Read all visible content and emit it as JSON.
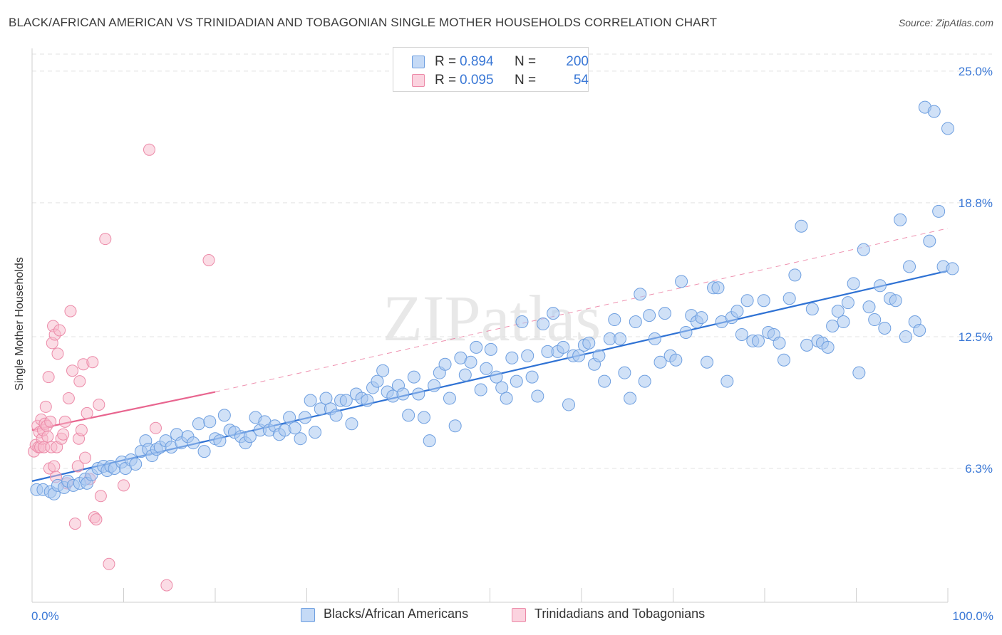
{
  "title": "BLACK/AFRICAN AMERICAN VS TRINIDADIAN AND TOBAGONIAN SINGLE MOTHER HOUSEHOLDS CORRELATION CHART",
  "source": "Source: ZipAtlas.com",
  "watermark": "ZIPatlas",
  "colors": {
    "blue_fill": "#a9c8f1",
    "blue_stroke": "#6e9fe0",
    "blue_line": "#2f72d4",
    "pink_fill": "#f7b9cc",
    "pink_stroke": "#ec8aa8",
    "pink_line": "#e8658f",
    "grid": "#e3e3e3",
    "tick_label": "#3a78d6"
  },
  "legend": {
    "rows": [
      {
        "r_label": "R =",
        "r_value": "0.894",
        "n_label": "N =",
        "n_value": "200"
      },
      {
        "r_label": "R =",
        "r_value": "0.095",
        "n_label": "N =",
        "n_value": "54"
      }
    ]
  },
  "bottom_legend": [
    "Blacks/African Americans",
    "Trinidadians and Tobagonians"
  ],
  "chart_data": {
    "type": "scatter",
    "title": "BLACK/AFRICAN AMERICAN VS TRINIDADIAN AND TOBAGONIAN SINGLE MOTHER HOUSEHOLDS CORRELATION CHART",
    "xlabel": "",
    "ylabel": "Single Mother Households",
    "xlim": [
      0,
      100
    ],
    "ylim": [
      0,
      25.8
    ],
    "x_tick_labels": [
      "0.0%",
      "100.0%"
    ],
    "y_ticks": [
      6.3,
      12.5,
      18.8,
      25.0
    ],
    "y_tick_labels": [
      "6.3%",
      "12.5%",
      "18.8%",
      "25.0%"
    ],
    "grid": "horizontal dashed",
    "legend_position": "top-center",
    "series": [
      {
        "name": "Blacks/African Americans",
        "color": "#a9c8f1",
        "trend": {
          "x": [
            0,
            100
          ],
          "y": [
            5.7,
            15.6
          ]
        },
        "points": [
          [
            0.5,
            5.3
          ],
          [
            1.2,
            5.3
          ],
          [
            2.0,
            5.2
          ],
          [
            2.4,
            5.1
          ],
          [
            2.8,
            5.5
          ],
          [
            3.5,
            5.4
          ],
          [
            3.9,
            5.7
          ],
          [
            4.5,
            5.5
          ],
          [
            5.2,
            5.6
          ],
          [
            5.8,
            5.8
          ],
          [
            6.0,
            5.6
          ],
          [
            6.5,
            6.0
          ],
          [
            7.2,
            6.3
          ],
          [
            7.8,
            6.4
          ],
          [
            8.2,
            6.2
          ],
          [
            8.6,
            6.4
          ],
          [
            9.0,
            6.3
          ],
          [
            9.8,
            6.6
          ],
          [
            10.2,
            6.3
          ],
          [
            10.8,
            6.7
          ],
          [
            11.3,
            6.5
          ],
          [
            11.9,
            7.1
          ],
          [
            12.4,
            7.6
          ],
          [
            12.7,
            7.2
          ],
          [
            13.1,
            6.9
          ],
          [
            13.6,
            7.2
          ],
          [
            14.0,
            7.3
          ],
          [
            14.6,
            7.6
          ],
          [
            15.2,
            7.3
          ],
          [
            15.8,
            7.9
          ],
          [
            16.3,
            7.5
          ],
          [
            17.0,
            7.8
          ],
          [
            17.6,
            7.5
          ],
          [
            18.2,
            8.4
          ],
          [
            18.8,
            7.1
          ],
          [
            19.4,
            8.5
          ],
          [
            20.0,
            7.7
          ],
          [
            20.5,
            7.6
          ],
          [
            21.0,
            8.8
          ],
          [
            21.6,
            8.1
          ],
          [
            22.1,
            8.0
          ],
          [
            22.8,
            7.8
          ],
          [
            23.3,
            7.5
          ],
          [
            23.8,
            7.8
          ],
          [
            24.4,
            8.7
          ],
          [
            24.9,
            8.1
          ],
          [
            25.4,
            8.5
          ],
          [
            25.9,
            8.1
          ],
          [
            26.5,
            8.3
          ],
          [
            27.0,
            7.9
          ],
          [
            27.6,
            8.1
          ],
          [
            28.1,
            8.7
          ],
          [
            28.7,
            8.2
          ],
          [
            29.3,
            7.7
          ],
          [
            29.8,
            8.7
          ],
          [
            30.4,
            9.5
          ],
          [
            30.9,
            8.0
          ],
          [
            31.5,
            9.1
          ],
          [
            32.1,
            9.6
          ],
          [
            32.6,
            9.1
          ],
          [
            33.2,
            8.8
          ],
          [
            33.7,
            9.5
          ],
          [
            34.3,
            9.5
          ],
          [
            34.9,
            8.4
          ],
          [
            35.4,
            9.8
          ],
          [
            36.0,
            9.6
          ],
          [
            36.6,
            9.5
          ],
          [
            37.2,
            10.1
          ],
          [
            37.7,
            10.4
          ],
          [
            38.3,
            10.9
          ],
          [
            38.8,
            9.9
          ],
          [
            39.4,
            9.7
          ],
          [
            40.0,
            10.2
          ],
          [
            40.5,
            9.8
          ],
          [
            41.1,
            8.8
          ],
          [
            41.7,
            10.6
          ],
          [
            42.2,
            9.8
          ],
          [
            42.8,
            8.7
          ],
          [
            43.4,
            7.6
          ],
          [
            43.9,
            10.2
          ],
          [
            44.5,
            10.8
          ],
          [
            45.1,
            11.2
          ],
          [
            45.6,
            9.6
          ],
          [
            46.2,
            8.3
          ],
          [
            46.8,
            11.5
          ],
          [
            47.3,
            10.7
          ],
          [
            47.9,
            11.3
          ],
          [
            48.5,
            12.0
          ],
          [
            49.0,
            10.0
          ],
          [
            49.6,
            11.0
          ],
          [
            50.1,
            11.9
          ],
          [
            50.7,
            10.6
          ],
          [
            51.3,
            10.1
          ],
          [
            51.8,
            9.6
          ],
          [
            52.4,
            11.5
          ],
          [
            52.9,
            10.4
          ],
          [
            53.5,
            13.2
          ],
          [
            54.1,
            11.6
          ],
          [
            54.6,
            10.6
          ],
          [
            55.2,
            9.7
          ],
          [
            55.8,
            13.1
          ],
          [
            56.3,
            11.8
          ],
          [
            56.9,
            13.6
          ],
          [
            57.4,
            11.8
          ],
          [
            58.0,
            12.0
          ],
          [
            58.6,
            9.3
          ],
          [
            59.1,
            11.6
          ],
          [
            59.7,
            11.6
          ],
          [
            60.3,
            12.1
          ],
          [
            60.8,
            12.2
          ],
          [
            61.4,
            11.2
          ],
          [
            61.9,
            11.6
          ],
          [
            62.5,
            10.4
          ],
          [
            63.1,
            12.4
          ],
          [
            63.6,
            13.3
          ],
          [
            64.2,
            12.4
          ],
          [
            64.7,
            10.8
          ],
          [
            65.3,
            9.6
          ],
          [
            65.9,
            13.2
          ],
          [
            66.4,
            14.5
          ],
          [
            66.9,
            10.4
          ],
          [
            67.4,
            13.5
          ],
          [
            68.0,
            12.4
          ],
          [
            68.6,
            11.3
          ],
          [
            69.1,
            13.6
          ],
          [
            69.7,
            11.6
          ],
          [
            70.3,
            11.4
          ],
          [
            70.9,
            15.1
          ],
          [
            71.4,
            12.7
          ],
          [
            72.0,
            13.5
          ],
          [
            72.6,
            13.2
          ],
          [
            73.1,
            13.4
          ],
          [
            73.7,
            11.3
          ],
          [
            74.4,
            14.8
          ],
          [
            74.9,
            14.8
          ],
          [
            75.3,
            13.2
          ],
          [
            75.9,
            10.4
          ],
          [
            76.4,
            13.4
          ],
          [
            77.0,
            13.7
          ],
          [
            77.5,
            12.6
          ],
          [
            78.1,
            14.2
          ],
          [
            78.7,
            12.3
          ],
          [
            79.3,
            12.3
          ],
          [
            79.9,
            14.2
          ],
          [
            80.4,
            12.7
          ],
          [
            81.0,
            12.6
          ],
          [
            81.6,
            12.2
          ],
          [
            82.1,
            11.4
          ],
          [
            82.7,
            14.3
          ],
          [
            83.3,
            15.4
          ],
          [
            84.0,
            17.7
          ],
          [
            84.6,
            12.1
          ],
          [
            85.2,
            13.8
          ],
          [
            85.8,
            12.3
          ],
          [
            86.3,
            12.2
          ],
          [
            86.9,
            12.0
          ],
          [
            87.4,
            13.0
          ],
          [
            88.0,
            13.7
          ],
          [
            88.6,
            13.2
          ],
          [
            89.1,
            14.1
          ],
          [
            89.7,
            15.0
          ],
          [
            90.3,
            10.8
          ],
          [
            90.8,
            16.6
          ],
          [
            91.4,
            13.9
          ],
          [
            92.0,
            13.3
          ],
          [
            92.6,
            14.9
          ],
          [
            93.1,
            12.9
          ],
          [
            93.7,
            14.3
          ],
          [
            94.3,
            14.2
          ],
          [
            94.8,
            18.0
          ],
          [
            95.4,
            12.5
          ],
          [
            95.8,
            15.8
          ],
          [
            96.4,
            13.2
          ],
          [
            96.9,
            12.8
          ],
          [
            97.5,
            23.3
          ],
          [
            98.0,
            17.0
          ],
          [
            98.5,
            23.1
          ],
          [
            99.0,
            18.4
          ],
          [
            99.5,
            15.8
          ],
          [
            100.0,
            22.3
          ],
          [
            100.5,
            15.7
          ]
        ]
      },
      {
        "name": "Trinidadians and Tobagonians",
        "color": "#f7b9cc",
        "trend": {
          "x": [
            0,
            20
          ],
          "y": [
            8.1,
            9.9
          ],
          "dashed_extension": {
            "x": [
              20,
              100
            ],
            "y": [
              9.9,
              17.6
            ]
          }
        },
        "points": [
          [
            0.2,
            7.1
          ],
          [
            0.4,
            7.4
          ],
          [
            0.6,
            8.3
          ],
          [
            0.7,
            7.3
          ],
          [
            0.8,
            8.0
          ],
          [
            0.9,
            7.3
          ],
          [
            1.0,
            8.6
          ],
          [
            1.1,
            7.7
          ],
          [
            1.2,
            8.1
          ],
          [
            1.3,
            7.3
          ],
          [
            1.4,
            8.4
          ],
          [
            1.5,
            9.2
          ],
          [
            1.6,
            8.3
          ],
          [
            1.7,
            7.8
          ],
          [
            1.8,
            10.6
          ],
          [
            1.9,
            6.3
          ],
          [
            2.0,
            8.5
          ],
          [
            2.1,
            7.3
          ],
          [
            2.2,
            12.2
          ],
          [
            2.3,
            13.0
          ],
          [
            2.4,
            6.4
          ],
          [
            2.5,
            12.6
          ],
          [
            2.6,
            5.9
          ],
          [
            2.7,
            7.3
          ],
          [
            2.8,
            11.7
          ],
          [
            3.0,
            12.8
          ],
          [
            3.2,
            7.7
          ],
          [
            3.4,
            7.9
          ],
          [
            3.6,
            8.5
          ],
          [
            3.8,
            5.6
          ],
          [
            4.0,
            9.6
          ],
          [
            4.2,
            13.7
          ],
          [
            4.4,
            10.9
          ],
          [
            4.7,
            3.7
          ],
          [
            5.0,
            6.4
          ],
          [
            5.1,
            7.7
          ],
          [
            5.2,
            10.4
          ],
          [
            5.4,
            8.1
          ],
          [
            5.6,
            11.2
          ],
          [
            5.8,
            6.8
          ],
          [
            6.0,
            8.9
          ],
          [
            6.3,
            5.8
          ],
          [
            6.6,
            11.3
          ],
          [
            6.8,
            4.0
          ],
          [
            7.0,
            3.9
          ],
          [
            7.3,
            9.3
          ],
          [
            7.5,
            5.0
          ],
          [
            8.0,
            17.1
          ],
          [
            8.4,
            1.8
          ],
          [
            10.0,
            5.5
          ],
          [
            12.8,
            21.3
          ],
          [
            13.5,
            8.2
          ],
          [
            14.7,
            0.8
          ],
          [
            19.3,
            16.1
          ]
        ]
      }
    ]
  }
}
